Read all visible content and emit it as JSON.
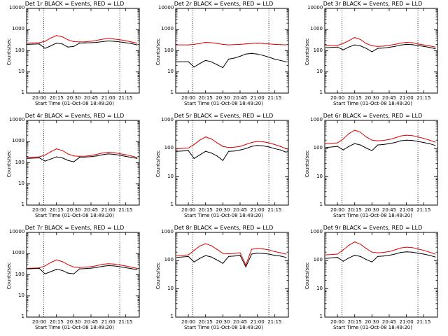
{
  "panels": [
    {
      "title": "Det 1r BLACK = Events, RED = LLD"
    },
    {
      "title": "Det 2r BLACK = Events, RED = LLD"
    },
    {
      "title": "Det 3r BLACK = Events, RED = LLD"
    },
    {
      "title": "Det 4r BLACK = Events, RED = LLD"
    },
    {
      "title": "Det 5r BLACK = Events, RED = LLD"
    },
    {
      "title": "Det 6r BLACK = Events, RED = LLD"
    },
    {
      "title": "Det 7r BLACK = Events, RED = LLD"
    },
    {
      "title": "Det 8r BLACK = Events, RED = LLD"
    },
    {
      "title": "Det 9r BLACK = Events, RED = LLD"
    }
  ],
  "ylabel": "Counts/sec",
  "xlabel": "Start Time (01-Oct-08 18:49:20)",
  "colors": {
    "events": "#000000",
    "lld": "#e00000"
  },
  "chart_data": [
    {
      "type": "line",
      "title": "Det 1r BLACK = Events, RED = LLD",
      "xlabel": "Start Time (01-Oct-08 18:49:20)",
      "ylabel": "Counts/sec",
      "yscale": "log",
      "ylim": [
        1,
        10000
      ],
      "xticks": [
        "20:00",
        "20:15",
        "20:30",
        "20:45",
        "21:00",
        "21:15"
      ],
      "yticks": [
        "1",
        "10",
        "100",
        "1000",
        "10000"
      ],
      "x": [
        "19:50",
        "20:00",
        "20:05",
        "20:10",
        "20:15",
        "20:20",
        "20:25",
        "20:30",
        "20:35",
        "20:40",
        "20:45",
        "20:50",
        "20:55",
        "21:00",
        "21:05",
        "21:10",
        "21:15",
        "21:20",
        "21:25"
      ],
      "series": [
        {
          "color": "#e00000",
          "values": [
            230,
            240,
            280,
            400,
            520,
            460,
            330,
            270,
            260,
            265,
            280,
            310,
            350,
            380,
            360,
            330,
            300,
            260,
            230
          ]
        },
        {
          "color": "#000000",
          "values": [
            200,
            210,
            130,
            170,
            230,
            210,
            150,
            160,
            230,
            235,
            240,
            250,
            270,
            290,
            280,
            260,
            240,
            220,
            190
          ]
        }
      ]
    },
    {
      "type": "line",
      "title": "Det 2r BLACK = Events, RED = LLD",
      "xlabel": "Start Time (01-Oct-08 18:49:20)",
      "ylabel": "Counts/sec",
      "yscale": "log",
      "ylim": [
        1,
        10000
      ],
      "xticks": [
        "20:00",
        "20:15",
        "20:30",
        "20:45",
        "21:00",
        "21:15"
      ],
      "yticks": [
        "1",
        "10",
        "100",
        "1000",
        "10000"
      ],
      "x": [
        "19:50",
        "20:00",
        "20:05",
        "20:10",
        "20:15",
        "20:20",
        "20:25",
        "20:30",
        "20:35",
        "20:40",
        "20:45",
        "20:50",
        "20:55",
        "21:00",
        "21:05",
        "21:10",
        "21:15",
        "21:20",
        "21:25"
      ],
      "series": [
        {
          "color": "#e00000",
          "values": [
            190,
            190,
            200,
            220,
            250,
            240,
            220,
            200,
            190,
            195,
            200,
            210,
            220,
            225,
            220,
            210,
            200,
            195,
            190
          ]
        },
        {
          "color": "#000000",
          "values": [
            30,
            30,
            17,
            25,
            35,
            30,
            22,
            16,
            40,
            45,
            55,
            70,
            75,
            70,
            60,
            50,
            40,
            35,
            30
          ]
        }
      ]
    },
    {
      "type": "line",
      "title": "Det 3r BLACK = Events, RED = LLD",
      "xlabel": "Start Time (01-Oct-08 18:49:20)",
      "ylabel": "Counts/sec",
      "yscale": "log",
      "ylim": [
        1,
        10000
      ],
      "xticks": [
        "20:00",
        "20:15",
        "20:30",
        "20:45",
        "21:00",
        "21:15"
      ],
      "yticks": [
        "1",
        "10",
        "100",
        "1000",
        "10000"
      ],
      "x": [
        "19:50",
        "20:00",
        "20:05",
        "20:10",
        "20:15",
        "20:20",
        "20:25",
        "20:30",
        "20:35",
        "20:40",
        "20:45",
        "20:50",
        "20:55",
        "21:00",
        "21:05",
        "21:10",
        "21:15",
        "21:20",
        "21:25"
      ],
      "series": [
        {
          "color": "#e00000",
          "values": [
            170,
            180,
            220,
            300,
            420,
            340,
            220,
            170,
            160,
            165,
            180,
            200,
            230,
            250,
            240,
            210,
            190,
            170,
            150
          ]
        },
        {
          "color": "#000000",
          "values": [
            140,
            150,
            110,
            150,
            190,
            170,
            130,
            90,
            130,
            135,
            145,
            160,
            185,
            200,
            195,
            175,
            160,
            145,
            125
          ]
        }
      ]
    },
    {
      "type": "line",
      "title": "Det 4r BLACK = Events, RED = LLD",
      "xlabel": "Start Time (01-Oct-08 18:49:20)",
      "ylabel": "Counts/sec",
      "yscale": "log",
      "ylim": [
        1,
        10000
      ],
      "xticks": [
        "20:00",
        "20:15",
        "20:30",
        "20:45",
        "21:00",
        "21:15"
      ],
      "yticks": [
        "1",
        "10",
        "100",
        "1000",
        "10000"
      ],
      "x": [
        "19:50",
        "20:00",
        "20:05",
        "20:10",
        "20:15",
        "20:20",
        "20:25",
        "20:30",
        "20:35",
        "20:40",
        "20:45",
        "20:50",
        "20:55",
        "21:00",
        "21:05",
        "21:10",
        "21:15",
        "21:20",
        "21:25"
      ],
      "series": [
        {
          "color": "#e00000",
          "values": [
            180,
            190,
            230,
            330,
            450,
            380,
            260,
            210,
            200,
            205,
            220,
            250,
            290,
            310,
            300,
            270,
            240,
            210,
            180
          ]
        },
        {
          "color": "#000000",
          "values": [
            160,
            170,
            120,
            150,
            190,
            170,
            130,
            110,
            180,
            185,
            195,
            210,
            240,
            260,
            250,
            225,
            200,
            180,
            160
          ]
        }
      ]
    },
    {
      "type": "line",
      "title": "Det 5r BLACK = Events, RED = LLD",
      "xlabel": "Start Time (01-Oct-08 18:49:20)",
      "ylabel": "Counts/sec",
      "yscale": "log",
      "ylim": [
        1,
        1000
      ],
      "xticks": [
        "20:00",
        "20:15",
        "20:30",
        "20:45",
        "21:00",
        "21:15"
      ],
      "yticks": [
        "1",
        "10",
        "100",
        "1000"
      ],
      "x": [
        "19:50",
        "20:00",
        "20:05",
        "20:10",
        "20:15",
        "20:20",
        "20:25",
        "20:30",
        "20:35",
        "20:40",
        "20:45",
        "20:50",
        "20:55",
        "21:00",
        "21:05",
        "21:10",
        "21:15",
        "21:20",
        "21:25"
      ],
      "series": [
        {
          "color": "#e00000",
          "values": [
            100,
            105,
            140,
            200,
            260,
            220,
            160,
            120,
            110,
            112,
            120,
            140,
            165,
            180,
            175,
            160,
            140,
            120,
            100
          ]
        },
        {
          "color": "#000000",
          "values": [
            80,
            85,
            45,
            60,
            80,
            70,
            55,
            38,
            80,
            82,
            90,
            100,
            120,
            130,
            125,
            115,
            100,
            90,
            75
          ]
        }
      ]
    },
    {
      "type": "line",
      "title": "Det 6r BLACK = Events, RED = LLD",
      "xlabel": "Start Time (01-Oct-08 18:49:20)",
      "ylabel": "Counts/sec",
      "yscale": "log",
      "ylim": [
        1,
        1000
      ],
      "xticks": [
        "20:00",
        "20:15",
        "20:30",
        "20:45",
        "21:00",
        "21:15"
      ],
      "yticks": [
        "1",
        "10",
        "100",
        "1000"
      ],
      "x": [
        "19:50",
        "20:00",
        "20:05",
        "20:10",
        "20:15",
        "20:20",
        "20:25",
        "20:30",
        "20:35",
        "20:40",
        "20:45",
        "20:50",
        "20:55",
        "21:00",
        "21:05",
        "21:10",
        "21:15",
        "21:20",
        "21:25"
      ],
      "series": [
        {
          "color": "#e00000",
          "values": [
            150,
            160,
            220,
            340,
            450,
            380,
            260,
            200,
            190,
            195,
            210,
            240,
            280,
            300,
            290,
            260,
            230,
            200,
            170
          ]
        },
        {
          "color": "#000000",
          "values": [
            110,
            120,
            90,
            120,
            150,
            135,
            105,
            85,
            135,
            140,
            150,
            165,
            190,
            200,
            195,
            180,
            165,
            150,
            130
          ]
        }
      ]
    },
    {
      "type": "line",
      "title": "Det 7r BLACK = Events, RED = LLD",
      "xlabel": "Start Time (01-Oct-08 18:49:20)",
      "ylabel": "Counts/sec",
      "yscale": "log",
      "ylim": [
        1,
        10000
      ],
      "xticks": [
        "20:00",
        "20:15",
        "20:30",
        "20:45",
        "21:00",
        "21:15"
      ],
      "yticks": [
        "1",
        "10",
        "100",
        "1000",
        "10000"
      ],
      "x": [
        "19:50",
        "20:00",
        "20:05",
        "20:10",
        "20:15",
        "20:20",
        "20:25",
        "20:30",
        "20:35",
        "20:40",
        "20:45",
        "20:50",
        "20:55",
        "21:00",
        "21:05",
        "21:10",
        "21:15",
        "21:20",
        "21:25"
      ],
      "series": [
        {
          "color": "#e00000",
          "values": [
            200,
            210,
            260,
            380,
            500,
            420,
            300,
            230,
            220,
            225,
            240,
            270,
            310,
            330,
            320,
            290,
            260,
            230,
            200
          ]
        },
        {
          "color": "#000000",
          "values": [
            190,
            200,
            110,
            140,
            180,
            160,
            120,
            110,
            190,
            195,
            205,
            220,
            250,
            270,
            260,
            240,
            215,
            195,
            175
          ]
        }
      ]
    },
    {
      "type": "line",
      "title": "Det 8r BLACK = Events, RED = LLD",
      "xlabel": "Start Time (01-Oct-08 18:49:20)",
      "ylabel": "Counts/sec",
      "yscale": "log",
      "ylim": [
        1,
        1000
      ],
      "xticks": [
        "20:00",
        "20:15",
        "20:30",
        "20:45",
        "21:00",
        "21:15"
      ],
      "yticks": [
        "1",
        "10",
        "100",
        "1000"
      ],
      "x": [
        "19:50",
        "20:00",
        "20:05",
        "20:10",
        "20:15",
        "20:20",
        "20:25",
        "20:30",
        "20:35",
        "20:40",
        "20:45",
        "20:50",
        "20:55",
        "21:00",
        "21:05",
        "21:10",
        "21:15",
        "21:20",
        "21:25"
      ],
      "series": [
        {
          "color": "#e00000",
          "values": [
            150,
            160,
            230,
            330,
            400,
            340,
            250,
            180,
            175,
            180,
            190,
            70,
            250,
            270,
            260,
            240,
            210,
            190,
            170
          ]
        },
        {
          "color": "#000000",
          "values": [
            130,
            140,
            90,
            120,
            150,
            135,
            105,
            80,
            140,
            145,
            155,
            60,
            170,
            185,
            180,
            170,
            155,
            145,
            130
          ]
        }
      ]
    },
    {
      "type": "line",
      "title": "Det 9r BLACK = Events, RED = LLD",
      "xlabel": "Start Time (01-Oct-08 18:49:20)",
      "ylabel": "Counts/sec",
      "yscale": "log",
      "ylim": [
        1,
        1000
      ],
      "xticks": [
        "20:00",
        "20:15",
        "20:30",
        "20:45",
        "21:00",
        "21:15"
      ],
      "yticks": [
        "1",
        "10",
        "100",
        "1000"
      ],
      "x": [
        "19:50",
        "20:00",
        "20:05",
        "20:10",
        "20:15",
        "20:20",
        "20:25",
        "20:30",
        "20:35",
        "20:40",
        "20:45",
        "20:50",
        "20:55",
        "21:00",
        "21:05",
        "21:10",
        "21:15",
        "21:20",
        "21:25"
      ],
      "series": [
        {
          "color": "#e00000",
          "values": [
            160,
            170,
            240,
            350,
            460,
            380,
            270,
            200,
            190,
            195,
            210,
            240,
            280,
            300,
            290,
            260,
            230,
            200,
            170
          ]
        },
        {
          "color": "#000000",
          "values": [
            120,
            130,
            95,
            125,
            155,
            140,
            110,
            90,
            140,
            145,
            155,
            170,
            195,
            205,
            200,
            185,
            170,
            155,
            135
          ]
        }
      ]
    }
  ]
}
